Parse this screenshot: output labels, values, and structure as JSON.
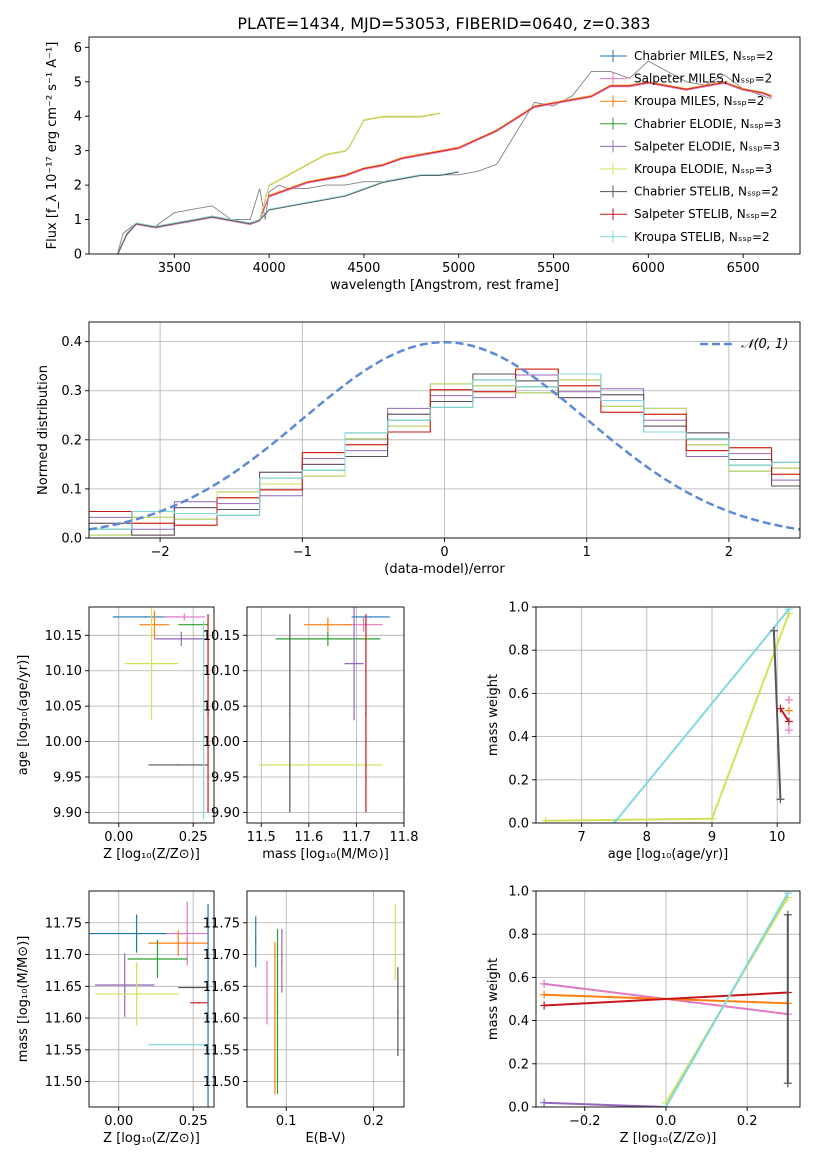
{
  "figure": {
    "title": "PLATE=1434, MJD=53053, FIBERID=0640, z=0.383"
  },
  "series_names": [
    "Chabrier MILES, N$_{SSP}$=2",
    "Salpeter MILES, N$_{SSP}$=2",
    "Kroupa MILES, N$_{SSP}$=2",
    "Chabrier ELODIE, N$_{SSP}$=3",
    "Salpeter ELODIE, N$_{SSP}$=3",
    "Kroupa ELODIE, N$_{SSP}$=3",
    "Chabrier STELIB, N$_{SSP}$=2",
    "Salpeter STELIB, N$_{SSP}$=2",
    "Kroupa STELIB, N$_{SSP}$=2"
  ],
  "colors": [
    "#1f77b4",
    "#e377c2",
    "#ff7f0e",
    "#2ca02c",
    "#9467bd",
    "#d4e157",
    "#555555",
    "#c8161d",
    "#80d8e0"
  ],
  "chart_data": [
    {
      "id": "spectrum",
      "type": "line",
      "title": "PLATE=1434, MJD=53053, FIBERID=0640, z=0.383",
      "xlabel": "wavelength [Angstrom, rest frame]",
      "ylabel": "Flux [f_λ 10⁻¹⁷ erg cm⁻² s⁻¹ A⁻¹]",
      "xlim": [
        3050,
        6800
      ],
      "ylim": [
        0,
        6.3
      ],
      "xticks": [
        3500,
        4000,
        4500,
        5000,
        5500,
        6000,
        6500
      ],
      "yticks": [
        0,
        1,
        2,
        3,
        4,
        5,
        6
      ],
      "grid": false,
      "legend": "top-right",
      "legend_entries": [
        "Chabrier MILES, N_SSP=2",
        "Salpeter MILES, N_SSP=2",
        "Kroupa MILES, N_SSP=2",
        "Chabrier ELODIE, N_SSP=3",
        "Salpeter ELODIE, N_SSP=3",
        "Kroupa ELODIE, N_SSP=3",
        "Chabrier STELIB, N_SSP=2",
        "Salpeter STELIB, N_SSP=2",
        "Kroupa STELIB, N_SSP=2"
      ],
      "data_color": "#808080",
      "data_x": [
        3200,
        3230,
        3300,
        3400,
        3500,
        3600,
        3700,
        3800,
        3900,
        3950,
        3980,
        4000,
        4050,
        4100,
        4200,
        4300,
        4400,
        4500,
        4600,
        4700,
        4800,
        4900,
        5000,
        5100,
        5200,
        5300,
        5400,
        5500,
        5600,
        5700,
        5800,
        5900,
        6000,
        6100,
        6200,
        6300,
        6400,
        6500,
        6600,
        6650
      ],
      "data_y": [
        0.0,
        0.6,
        0.9,
        0.8,
        1.2,
        1.3,
        1.4,
        1.0,
        1.0,
        1.9,
        1.0,
        1.8,
        2.0,
        1.9,
        1.9,
        2.0,
        2.0,
        2.1,
        2.1,
        2.2,
        2.3,
        2.3,
        2.3,
        2.4,
        2.6,
        3.5,
        4.4,
        4.3,
        4.6,
        5.3,
        5.3,
        5.1,
        5.6,
        5.3,
        5.0,
        4.9,
        5.2,
        4.8,
        4.6,
        4.5
      ],
      "model_lines": [
        {
          "name": "MILES",
          "x": [
            3200,
            3250,
            3300,
            3400,
            3500,
            3600,
            3700,
            3800,
            3900,
            3950,
            4000,
            4100,
            4200,
            4300,
            4400,
            4500,
            4600,
            4700,
            4800,
            4900,
            5000,
            5200,
            5400,
            5500,
            5600,
            5700,
            5800,
            5900,
            6000,
            6100,
            6200,
            6300,
            6400,
            6500,
            6600,
            6650
          ],
          "y": [
            0.0,
            0.6,
            0.9,
            0.8,
            0.9,
            1.0,
            1.1,
            1.0,
            0.9,
            1.0,
            1.7,
            1.9,
            2.1,
            2.2,
            2.3,
            2.5,
            2.6,
            2.8,
            2.9,
            3.0,
            3.1,
            3.6,
            4.3,
            4.4,
            4.5,
            4.6,
            4.9,
            4.9,
            5.0,
            4.9,
            4.8,
            4.9,
            5.0,
            4.8,
            4.7,
            4.6
          ]
        },
        {
          "name": "ELODIE",
          "x": [
            3200,
            3250,
            3300,
            3400,
            3500,
            3600,
            3700,
            3800,
            3900,
            3950,
            4000,
            4100,
            4200,
            4300,
            4400,
            4420,
            4500,
            4600,
            4700,
            4800,
            4900
          ],
          "y": [
            0.0,
            0.6,
            0.9,
            0.8,
            0.9,
            1.0,
            1.1,
            1.0,
            0.9,
            1.0,
            2.0,
            2.3,
            2.6,
            2.9,
            3.0,
            3.1,
            3.9,
            4.0,
            4.0,
            4.0,
            4.1
          ]
        },
        {
          "name": "STELIB",
          "x": [
            3200,
            3250,
            3300,
            3400,
            3500,
            3600,
            3700,
            3800,
            3900,
            3950,
            4000,
            4100,
            4200,
            4300,
            4400,
            4500,
            4600,
            4700,
            4800,
            4900,
            5000
          ],
          "y": [
            0.0,
            0.6,
            0.9,
            0.8,
            0.9,
            1.0,
            1.1,
            1.0,
            0.9,
            1.0,
            1.3,
            1.4,
            1.5,
            1.6,
            1.7,
            1.9,
            2.1,
            2.2,
            2.3,
            2.3,
            2.4
          ]
        }
      ]
    },
    {
      "id": "residuals",
      "type": "line",
      "xlabel": "(data-model)/error",
      "ylabel": "Normed distribution",
      "xlim": [
        -2.5,
        2.5
      ],
      "ylim": [
        0,
        0.44
      ],
      "xticks": [
        -2,
        -1,
        0,
        1,
        2
      ],
      "yticks": [
        0.0,
        0.1,
        0.2,
        0.3,
        0.4
      ],
      "grid": true,
      "legend": "top-right",
      "gaussian_label": "𝒩(0, 1)",
      "gaussian_color": "#5b8bd6",
      "hist_x": [
        -2.5,
        -2.2,
        -1.9,
        -1.6,
        -1.3,
        -1.0,
        -0.7,
        -0.4,
        -0.1,
        0.2,
        0.5,
        0.8,
        1.1,
        1.4,
        1.7,
        2.0,
        2.3,
        2.5
      ],
      "hist_y": [
        0.03,
        0.03,
        0.05,
        0.07,
        0.11,
        0.15,
        0.19,
        0.24,
        0.29,
        0.31,
        0.32,
        0.31,
        0.28,
        0.24,
        0.19,
        0.16,
        0.13,
        0.11
      ]
    },
    {
      "id": "age_vs_Z",
      "type": "scatter",
      "xlabel": "Z [log₁₀(Z/Z⊙)]",
      "ylabel": "age  [log₁₀(age/yr)]",
      "xlim": [
        -0.1,
        0.32
      ],
      "ylim": [
        9.885,
        10.19
      ],
      "xticks": [
        0.0,
        0.25
      ],
      "yticks": [
        9.9,
        9.95,
        10.0,
        10.05,
        10.1,
        10.15
      ],
      "grid": true,
      "points": [
        {
          "x": 0.09,
          "y": 10.176,
          "xerr": 0.11,
          "yerr": 0.0
        },
        {
          "x": 0.22,
          "y": 10.176,
          "xerr": 0.07,
          "yerr": 0.005
        },
        {
          "x": 0.12,
          "y": 10.165,
          "xerr": 0.05,
          "yerr": 0.02
        },
        {
          "x": 0.25,
          "y": 10.165,
          "xerr": 0.05,
          "yerr": 0.0
        },
        {
          "x": 0.21,
          "y": 10.145,
          "xerr": 0.09,
          "yerr": 0.01
        },
        {
          "x": 0.11,
          "y": 10.11,
          "xerr": 0.09,
          "yerr": 0.08
        },
        {
          "x": 0.2,
          "y": 9.967,
          "xerr": 0.1,
          "yerr": 0.0
        },
        {
          "x": 0.3,
          "y": 10.04,
          "xerr": 0.0,
          "yerr": 0.14
        },
        {
          "x": 0.285,
          "y": 10.03,
          "xerr": 0.0,
          "yerr": 0.14
        }
      ]
    },
    {
      "id": "age_vs_mass",
      "type": "scatter",
      "xlabel": "mass [log₁₀(M/M⊙)]",
      "ylabel": "",
      "xlim": [
        11.47,
        11.8
      ],
      "ylim": [
        9.885,
        10.19
      ],
      "xticks": [
        11.5,
        11.6,
        11.7,
        11.8
      ],
      "yticks": [
        9.9,
        9.95,
        10.0,
        10.05,
        10.1,
        10.15
      ],
      "grid": true,
      "points": [
        {
          "x": 11.73,
          "y": 10.176,
          "xerr": 0.04,
          "yerr": 0.0
        },
        {
          "x": 11.715,
          "y": 10.165,
          "xerr": 0.04,
          "yerr": 0.01
        },
        {
          "x": 11.64,
          "y": 10.165,
          "xerr": 0.05,
          "yerr": 0.01
        },
        {
          "x": 11.64,
          "y": 10.145,
          "xerr": 0.11,
          "yerr": 0.01
        },
        {
          "x": 11.695,
          "y": 10.11,
          "xerr": 0.02,
          "yerr": 0.08
        },
        {
          "x": 11.625,
          "y": 9.967,
          "xerr": 0.13,
          "yerr": 0.0
        },
        {
          "x": 11.56,
          "y": 10.04,
          "xerr": 0.0,
          "yerr": 0.14
        },
        {
          "x": 11.72,
          "y": 10.04,
          "xerr": 0.0,
          "yerr": 0.14
        }
      ]
    },
    {
      "id": "weight_vs_age",
      "type": "line",
      "xlabel": "age  [log₁₀(age/yr)]",
      "ylabel": "mass weight",
      "xlim": [
        6.3,
        10.35
      ],
      "ylim": [
        0,
        1.0
      ],
      "xticks": [
        7,
        8,
        9,
        10
      ],
      "yticks": [
        0.0,
        0.2,
        0.4,
        0.6,
        0.8,
        1.0
      ],
      "grid": true,
      "series": [
        {
          "x": [
            6.45,
            9.0,
            10.18
          ],
          "y": [
            0.01,
            0.02,
            0.97
          ]
        },
        {
          "x": [
            7.5,
            10.18
          ],
          "y": [
            0.0,
            0.99
          ]
        },
        {
          "x": [
            9.95,
            10.05
          ],
          "y": [
            0.89,
            0.11
          ]
        },
        {
          "x": [
            10.05,
            10.18
          ],
          "y": [
            0.53,
            0.47
          ]
        },
        {
          "x": [
            10.18
          ],
          "y": [
            0.57
          ]
        },
        {
          "x": [
            10.18
          ],
          "y": [
            0.52
          ]
        },
        {
          "x": [
            10.18
          ],
          "y": [
            0.43
          ]
        }
      ]
    },
    {
      "id": "mass_vs_Z",
      "type": "scatter",
      "xlabel": "Z [log₁₀(Z/Z⊙)]",
      "ylabel": "mass [log₁₀(M/M⊙)]",
      "xlim": [
        -0.1,
        0.32
      ],
      "ylim": [
        11.46,
        11.8
      ],
      "xticks": [
        0.0,
        0.25
      ],
      "yticks": [
        11.5,
        11.55,
        11.6,
        11.65,
        11.7,
        11.75
      ],
      "grid": true,
      "points": [
        {
          "x": 0.06,
          "y": 11.733,
          "xerr": 0.16,
          "yerr": 0.03
        },
        {
          "x": 0.23,
          "y": 11.733,
          "xerr": 0.07,
          "yerr": 0.05
        },
        {
          "x": 0.2,
          "y": 11.718,
          "xerr": 0.1,
          "yerr": 0.02
        },
        {
          "x": 0.13,
          "y": 11.693,
          "xerr": 0.1,
          "yerr": 0.03
        },
        {
          "x": 0.02,
          "y": 11.652,
          "xerr": 0.1,
          "yerr": 0.05
        },
        {
          "x": 0.06,
          "y": 11.638,
          "xerr": 0.14,
          "yerr": 0.05
        },
        {
          "x": 0.25,
          "y": 11.648,
          "xerr": 0.05,
          "yerr": 0.0
        },
        {
          "x": 0.27,
          "y": 11.624,
          "xerr": 0.03,
          "yerr": 0.0
        },
        {
          "x": 0.2,
          "y": 11.558,
          "xerr": 0.1,
          "yerr": 0.0
        },
        {
          "x": 0.3,
          "y": 11.62,
          "xerr": 0.0,
          "yerr": 0.16
        }
      ]
    },
    {
      "id": "mass_vs_ebv",
      "type": "scatter",
      "xlabel": "E(B-V)",
      "ylabel": "",
      "xlim": [
        0.055,
        0.235
      ],
      "ylim": [
        11.46,
        11.8
      ],
      "xticks": [
        0.1,
        0.2
      ],
      "yticks": [
        11.5,
        11.55,
        11.6,
        11.65,
        11.7,
        11.75
      ],
      "grid": true,
      "points": [
        {
          "x": 0.065,
          "y": 11.72,
          "xerr": 0,
          "yerr": 0.04
        },
        {
          "x": 0.078,
          "y": 11.64,
          "xerr": 0,
          "yerr": 0.05
        },
        {
          "x": 0.087,
          "y": 11.6,
          "xerr": 0,
          "yerr": 0.12
        },
        {
          "x": 0.09,
          "y": 11.61,
          "xerr": 0,
          "yerr": 0.13
        },
        {
          "x": 0.095,
          "y": 11.69,
          "xerr": 0,
          "yerr": 0.05
        },
        {
          "x": 0.225,
          "y": 11.72,
          "xerr": 0,
          "yerr": 0.06
        },
        {
          "x": 0.228,
          "y": 11.61,
          "xerr": 0,
          "yerr": 0.07
        }
      ]
    },
    {
      "id": "weight_vs_Z",
      "type": "line",
      "xlabel": "Z [log₁₀(Z/Z⊙)]",
      "ylabel": "mass weight",
      "xlim": [
        -0.32,
        0.33
      ],
      "ylim": [
        0,
        1.0
      ],
      "xticks": [
        -0.2,
        0.0,
        0.2
      ],
      "yticks": [
        0.0,
        0.2,
        0.4,
        0.6,
        0.8,
        1.0
      ],
      "grid": true,
      "series": [
        {
          "x": [
            -0.3,
            0.3
          ],
          "y": [
            0.57,
            0.43
          ]
        },
        {
          "x": [
            -0.3,
            0.3
          ],
          "y": [
            0.52,
            0.48
          ]
        },
        {
          "x": [
            -0.3,
            0.3
          ],
          "y": [
            0.47,
            0.53
          ]
        },
        {
          "x": [
            -0.3,
            0.0
          ],
          "y": [
            0.02,
            0.0
          ]
        },
        {
          "x": [
            0.0,
            0.3
          ],
          "y": [
            0.02,
            0.97
          ]
        },
        {
          "x": [
            0.0,
            0.3
          ],
          "y": [
            0.0,
            0.99
          ]
        },
        {
          "x": [
            0.3,
            0.3
          ],
          "y": [
            0.11,
            0.89
          ]
        }
      ]
    }
  ]
}
